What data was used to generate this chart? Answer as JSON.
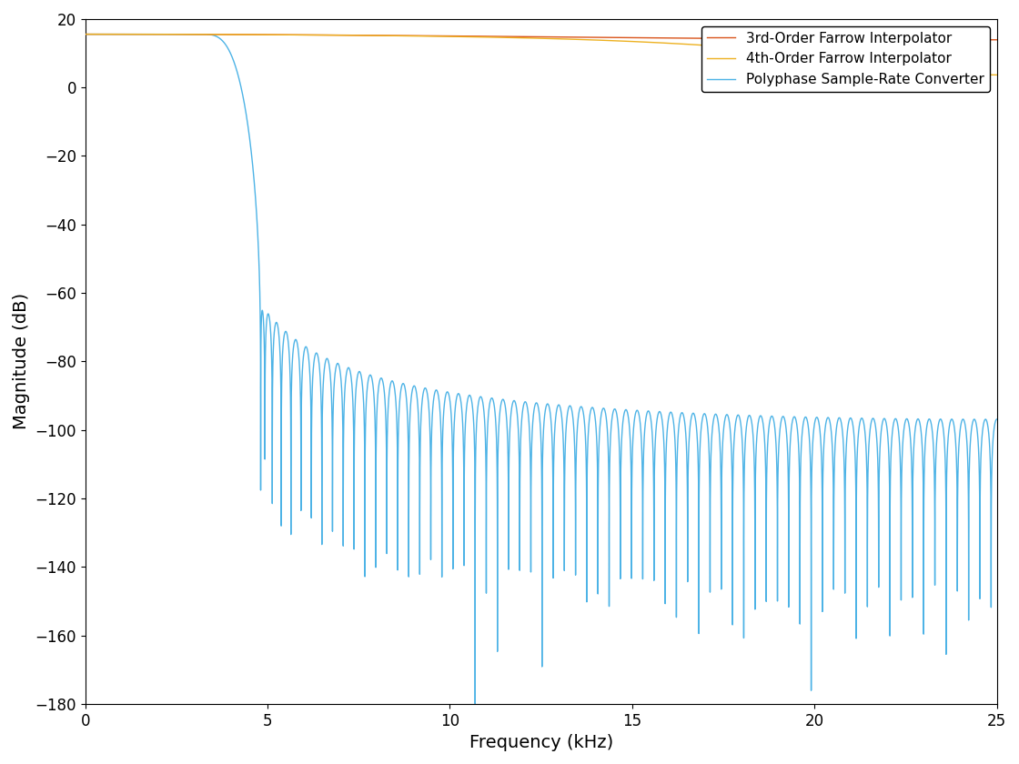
{
  "title": "",
  "xlabel": "Frequency (kHz)",
  "ylabel": "Magnitude (dB)",
  "xlim": [
    0,
    25
  ],
  "ylim": [
    -180,
    20
  ],
  "yticks": [
    20,
    0,
    -20,
    -40,
    -60,
    -80,
    -100,
    -120,
    -140,
    -160,
    -180
  ],
  "xticks": [
    0,
    5,
    10,
    15,
    20,
    25
  ],
  "polyphase_color": "#4db3e6",
  "farrow3_color": "#d95319",
  "farrow4_color": "#edb120",
  "legend_labels": [
    "Polyphase Sample-Rate Converter",
    "3rd-Order Farrow Interpolator",
    "4th-Order Farrow Interpolator"
  ],
  "background_color": "#ffffff",
  "linewidth": 1.0
}
